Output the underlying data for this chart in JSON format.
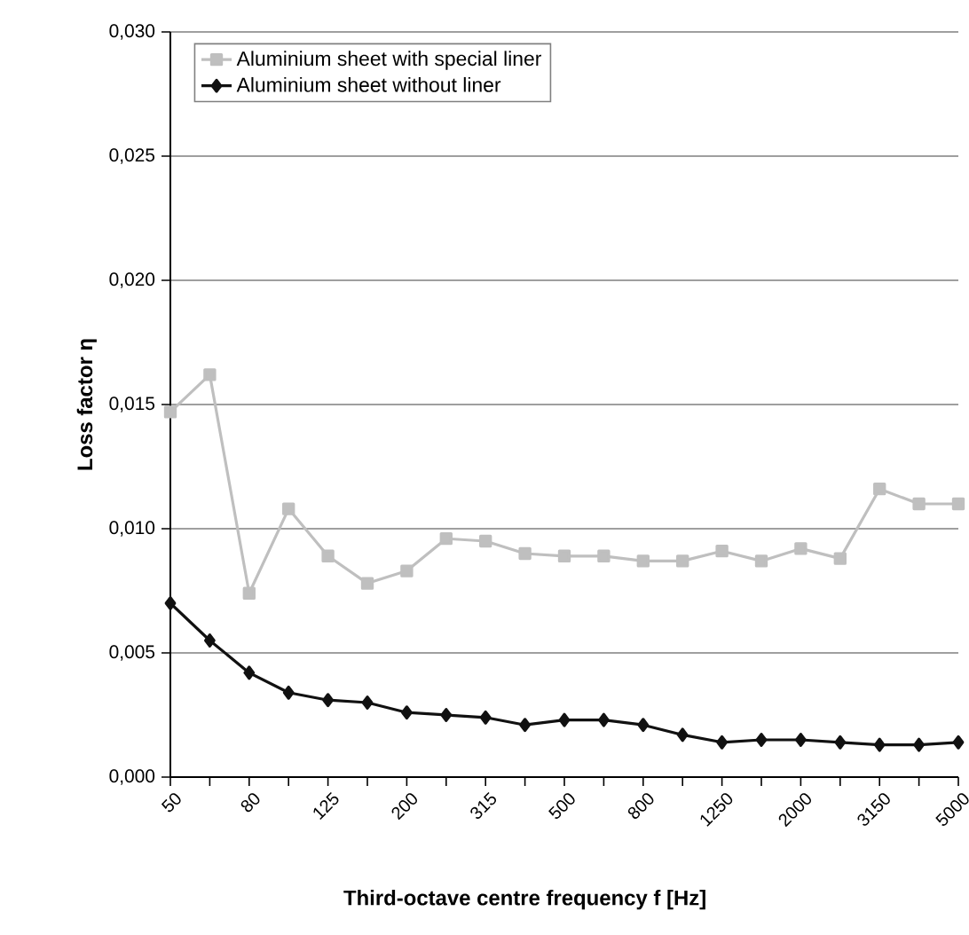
{
  "chart_data": {
    "type": "line",
    "xlabel": "Third-octave centre frequency f [Hz]",
    "ylabel": "Loss factor η",
    "categories": [
      "50",
      null,
      "80",
      null,
      "125",
      null,
      "200",
      null,
      "315",
      null,
      "500",
      null,
      "800",
      null,
      "1250",
      null,
      "2000",
      null,
      "3150",
      null,
      "5000"
    ],
    "series": [
      {
        "name": "Aluminium sheet with special liner",
        "color": "#bfbfbf",
        "marker": "square",
        "values": [
          0.0147,
          0.0162,
          0.0074,
          0.0108,
          0.0089,
          0.0078,
          0.0083,
          0.0096,
          0.0095,
          0.009,
          0.0089,
          0.0089,
          0.0087,
          0.0087,
          0.0091,
          0.0087,
          0.0092,
          0.0088,
          0.0116,
          0.011,
          0.011
        ]
      },
      {
        "name": "Aluminium sheet without liner",
        "color": "#111111",
        "marker": "diamond",
        "values": [
          0.007,
          0.0055,
          0.0042,
          0.0034,
          0.0031,
          0.003,
          0.0026,
          0.0025,
          0.0024,
          0.0021,
          0.0023,
          0.0023,
          0.0021,
          0.0017,
          0.0014,
          0.0015,
          0.0015,
          0.0014,
          0.0013,
          0.0013,
          0.0014
        ]
      }
    ],
    "ylim": [
      0,
      0.03
    ],
    "yticks": [
      {
        "value": 0,
        "label": "0,000"
      },
      {
        "value": 0.005,
        "label": "0,005"
      },
      {
        "value": 0.01,
        "label": "0,010"
      },
      {
        "value": 0.015,
        "label": "0,015"
      },
      {
        "value": 0.02,
        "label": "0,020"
      },
      {
        "value": 0.025,
        "label": "0,025"
      },
      {
        "value": 0.03,
        "label": "0,030"
      }
    ],
    "grid": "y",
    "legend": "top left",
    "line_style": "solid"
  }
}
